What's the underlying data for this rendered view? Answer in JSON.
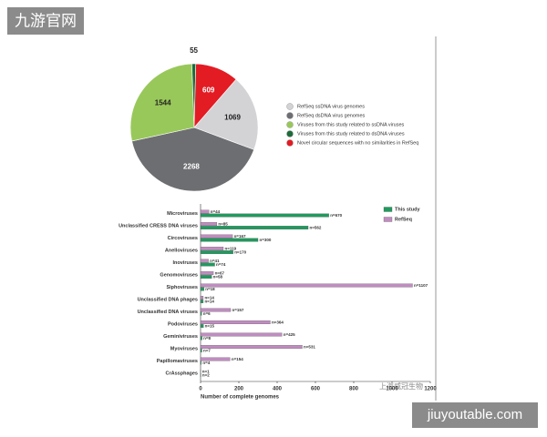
{
  "chart_data": [
    {
      "type": "pie",
      "categories": [
        "RefSeq ssDNA virus genomes",
        "RefSeq dsDNA virus genomes",
        "Viruses from this study related to ssDNA viruses",
        "Viruses from this study related to dsDNA viruses",
        "Novel circular sequences with no similarities in RefSeq"
      ],
      "values": [
        1069,
        2268,
        1544,
        55,
        609
      ],
      "colors": [
        "#d3d3d6",
        "#6d6e71",
        "#99c85a",
        "#1e6b3c",
        "#e31b23"
      ]
    },
    {
      "type": "hbar",
      "categories": [
        "Microviruses",
        "Unclassified CRESS DNA viruses",
        "Circoviruses",
        "Anelloviruses",
        "Inoviruses",
        "Genomoviruses",
        "Siphoviruses",
        "Unclassified DNA phages",
        "Unclassified DNA viruses",
        "Podoviruses",
        "Geminiviruses",
        "Myoviruses",
        "Papillomaviruses",
        "CrAssphages"
      ],
      "series": [
        {
          "name": "This study",
          "color": "#1f9a5e",
          "values": [
            670,
            562,
            300,
            170,
            74,
            58,
            18,
            14,
            6,
            15,
            8,
            7,
            4,
            2
          ],
          "value_labels": [
            "n=670",
            "n=562",
            "n=300",
            "n=170",
            "n=74",
            "n=58",
            "n=18",
            "n=14",
            "n=6",
            "n=15",
            "n=8",
            "n=7",
            "n=4",
            "n=2"
          ]
        },
        {
          "name": "RefSeq",
          "color": "#c08cc0",
          "values": [
            44,
            85,
            167,
            119,
            41,
            67,
            1107,
            14,
            157,
            364,
            425,
            531,
            154,
            1
          ],
          "value_labels": [
            "n=44",
            "n=85",
            "n=167",
            "n=119",
            "n=41",
            "n=67",
            "n=1107",
            "n=14",
            "n=157",
            "n=364",
            "n=425",
            "n=531",
            "n=154",
            "n=1"
          ]
        }
      ],
      "xlabel": "Number of complete genomes",
      "xlim": [
        0,
        1200
      ],
      "xticks": [
        0,
        200,
        400,
        600,
        800,
        1000,
        1200
      ]
    }
  ],
  "watermarks": [
    "九游官网",
    "上海威冠生物",
    "jiuyoutable.com"
  ]
}
